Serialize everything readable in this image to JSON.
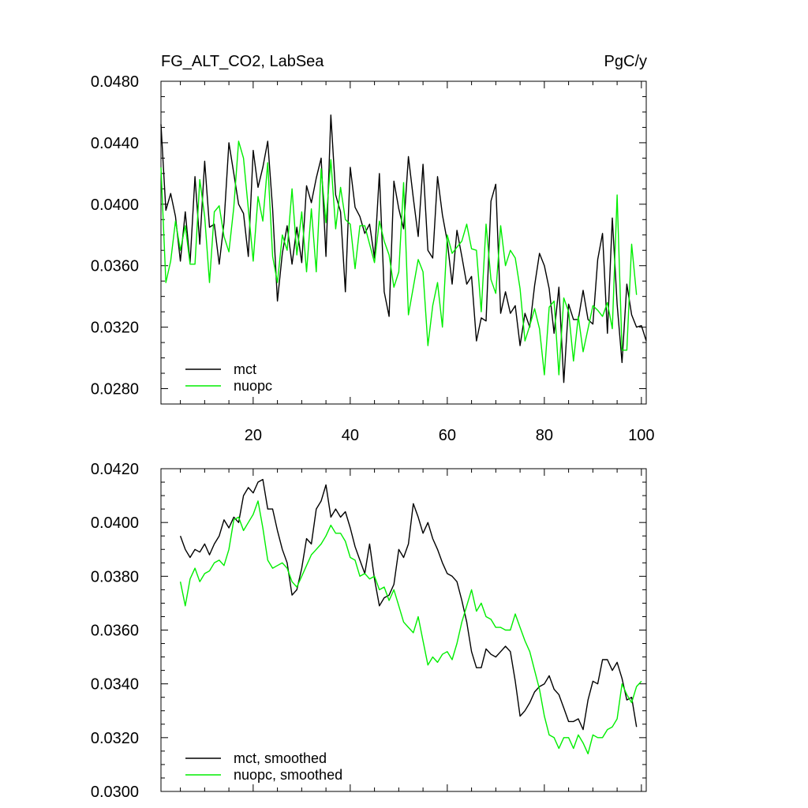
{
  "chart_data": [
    {
      "type": "line",
      "title": "FG_ALT_CO2, LabSea",
      "units": "PgC/y",
      "xlim": [
        1,
        101
      ],
      "ylim": [
        0.027,
        0.048
      ],
      "x_ticks": [
        "20",
        "40",
        "60",
        "80",
        "100"
      ],
      "y_ticks": [
        "0.0480",
        "0.0440",
        "0.0400",
        "0.0360",
        "0.0320",
        "0.0280"
      ],
      "legend_position": "bottom-left",
      "series": [
        {
          "name": "mct",
          "color": "#000000",
          "x_start": 1,
          "values": [
            0.0452,
            0.0396,
            0.0407,
            0.0392,
            0.0363,
            0.0395,
            0.0362,
            0.0418,
            0.0374,
            0.0428,
            0.0385,
            0.0387,
            0.0361,
            0.0388,
            0.044,
            0.042,
            0.04,
            0.0394,
            0.0366,
            0.0435,
            0.0411,
            0.0424,
            0.0441,
            0.0397,
            0.0337,
            0.0368,
            0.0386,
            0.0361,
            0.0385,
            0.0362,
            0.0412,
            0.0401,
            0.0417,
            0.043,
            0.0366,
            0.0458,
            0.0406,
            0.0395,
            0.0343,
            0.0424,
            0.0398,
            0.0392,
            0.0381,
            0.0387,
            0.0365,
            0.042,
            0.0343,
            0.0327,
            0.0415,
            0.0397,
            0.0384,
            0.0431,
            0.0404,
            0.0379,
            0.0426,
            0.037,
            0.0365,
            0.0418,
            0.0393,
            0.0376,
            0.0348,
            0.0383,
            0.0366,
            0.0348,
            0.0353,
            0.0311,
            0.0326,
            0.0324,
            0.0402,
            0.0413,
            0.0329,
            0.0343,
            0.0329,
            0.0334,
            0.0308,
            0.0329,
            0.032,
            0.0347,
            0.0368,
            0.036,
            0.0345,
            0.0316,
            0.0346,
            0.0284,
            0.0335,
            0.0325,
            0.0325,
            0.0344,
            0.0325,
            0.0322,
            0.0364,
            0.0381,
            0.0316,
            0.0391,
            0.0335,
            0.0297,
            0.0348,
            0.0328,
            0.032,
            0.0321,
            0.0311
          ]
        },
        {
          "name": "nuopc",
          "color": "#00ee00",
          "x_start": 1,
          "values": [
            0.0424,
            0.0349,
            0.0363,
            0.0389,
            0.037,
            0.0386,
            0.0361,
            0.0361,
            0.0416,
            0.0392,
            0.0349,
            0.0395,
            0.0399,
            0.0379,
            0.0369,
            0.0398,
            0.0441,
            0.043,
            0.0397,
            0.0363,
            0.0405,
            0.0389,
            0.0427,
            0.0366,
            0.0349,
            0.038,
            0.037,
            0.041,
            0.0367,
            0.0395,
            0.0356,
            0.0397,
            0.0356,
            0.0423,
            0.0388,
            0.0429,
            0.0384,
            0.0411,
            0.039,
            0.0387,
            0.0358,
            0.0386,
            0.0386,
            0.0374,
            0.0362,
            0.0389,
            0.0376,
            0.0367,
            0.0346,
            0.0356,
            0.0414,
            0.0328,
            0.0346,
            0.0364,
            0.0356,
            0.0308,
            0.0334,
            0.0349,
            0.032,
            0.038,
            0.0368,
            0.0372,
            0.0376,
            0.0387,
            0.0371,
            0.037,
            0.033,
            0.0387,
            0.0351,
            0.0342,
            0.0386,
            0.036,
            0.037,
            0.0365,
            0.0345,
            0.0311,
            0.0321,
            0.0332,
            0.0319,
            0.0289,
            0.0333,
            0.0337,
            0.0289,
            0.0339,
            0.033,
            0.0298,
            0.0327,
            0.0304,
            0.0319,
            0.0334,
            0.0331,
            0.0327,
            0.0336,
            0.0319,
            0.0406,
            0.0305,
            0.0305,
            0.0374,
            0.0341
          ]
        }
      ]
    },
    {
      "type": "line",
      "xlim": [
        1,
        101
      ],
      "ylim": [
        0.03,
        0.042
      ],
      "y_ticks": [
        "0.0420",
        "0.0400",
        "0.0380",
        "0.0360",
        "0.0340",
        "0.0320",
        "0.0300"
      ],
      "legend_position": "bottom-left",
      "series": [
        {
          "name": "mct, smoothed",
          "color": "#000000",
          "x_start": 5,
          "values": [
            0.0395,
            0.039,
            0.0387,
            0.039,
            0.0389,
            0.0392,
            0.0388,
            0.0392,
            0.0395,
            0.0401,
            0.0398,
            0.0402,
            0.04,
            0.041,
            0.0413,
            0.0411,
            0.0415,
            0.0416,
            0.0405,
            0.0405,
            0.0397,
            0.039,
            0.0385,
            0.0373,
            0.0375,
            0.0383,
            0.0394,
            0.0392,
            0.0405,
            0.0408,
            0.0414,
            0.0402,
            0.0405,
            0.0402,
            0.0404,
            0.0398,
            0.0391,
            0.0386,
            0.0381,
            0.0392,
            0.0379,
            0.0369,
            0.0372,
            0.0373,
            0.0377,
            0.039,
            0.0387,
            0.0392,
            0.0407,
            0.0402,
            0.0396,
            0.04,
            0.0394,
            0.039,
            0.0385,
            0.0381,
            0.038,
            0.0378,
            0.0371,
            0.0363,
            0.0352,
            0.0346,
            0.0346,
            0.0353,
            0.0351,
            0.035,
            0.0352,
            0.0354,
            0.0352,
            0.0341,
            0.0328,
            0.033,
            0.0333,
            0.0337,
            0.0339,
            0.034,
            0.0343,
            0.0338,
            0.0336,
            0.0331,
            0.0326,
            0.0326,
            0.0327,
            0.0323,
            0.0334,
            0.0341,
            0.034,
            0.0349,
            0.0349,
            0.0345,
            0.0348,
            0.0342,
            0.0334,
            0.0335,
            0.0324
          ]
        },
        {
          "name": "nuopc, smoothed",
          "color": "#00ee00",
          "x_start": 5,
          "values": [
            0.0378,
            0.0369,
            0.0379,
            0.0383,
            0.0378,
            0.0381,
            0.0382,
            0.0385,
            0.0386,
            0.0384,
            0.039,
            0.0401,
            0.0402,
            0.0397,
            0.04,
            0.0403,
            0.0408,
            0.0398,
            0.0386,
            0.0383,
            0.0384,
            0.0385,
            0.0383,
            0.0378,
            0.0376,
            0.038,
            0.0384,
            0.0388,
            0.039,
            0.0392,
            0.0395,
            0.0399,
            0.0396,
            0.0396,
            0.0393,
            0.0387,
            0.0386,
            0.038,
            0.0381,
            0.0379,
            0.038,
            0.0375,
            0.0376,
            0.0371,
            0.0375,
            0.0369,
            0.0363,
            0.0361,
            0.0359,
            0.0365,
            0.0356,
            0.0347,
            0.035,
            0.0348,
            0.0351,
            0.0352,
            0.0349,
            0.0355,
            0.0363,
            0.0369,
            0.0375,
            0.0367,
            0.037,
            0.0365,
            0.0364,
            0.0361,
            0.0361,
            0.036,
            0.036,
            0.0366,
            0.0361,
            0.0356,
            0.0352,
            0.0345,
            0.0338,
            0.0328,
            0.0321,
            0.032,
            0.0316,
            0.032,
            0.032,
            0.0316,
            0.0321,
            0.0318,
            0.0314,
            0.0321,
            0.032,
            0.032,
            0.0323,
            0.0324,
            0.0327,
            0.034,
            0.0336,
            0.0333,
            0.0339,
            0.0341
          ]
        }
      ]
    }
  ]
}
